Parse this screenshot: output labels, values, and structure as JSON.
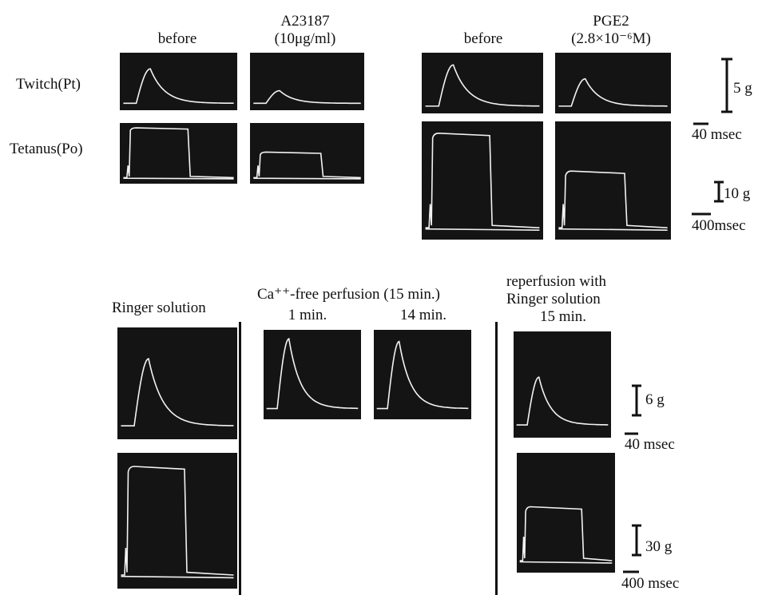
{
  "top": {
    "col_titles": [
      "before",
      "A23187",
      "(10μg/ml)",
      "before",
      "PGE2",
      "(2.8×10⁻⁶M)"
    ],
    "row_labels": [
      "Twitch(Pt)",
      "Tetanus(Po)"
    ],
    "scale_labels": [
      "5 g",
      "40 msec",
      "10 g",
      "400msec"
    ]
  },
  "bottom": {
    "col_titles": [
      "Ringer solution",
      "Ca⁺⁺-free perfusion (15 min.)",
      "1 min.",
      "14 min.",
      "reperfusion with",
      "Ringer solution",
      "15 min."
    ],
    "scale_labels": [
      "6 g",
      "40 msec",
      "30 g",
      "400 msec"
    ]
  }
}
